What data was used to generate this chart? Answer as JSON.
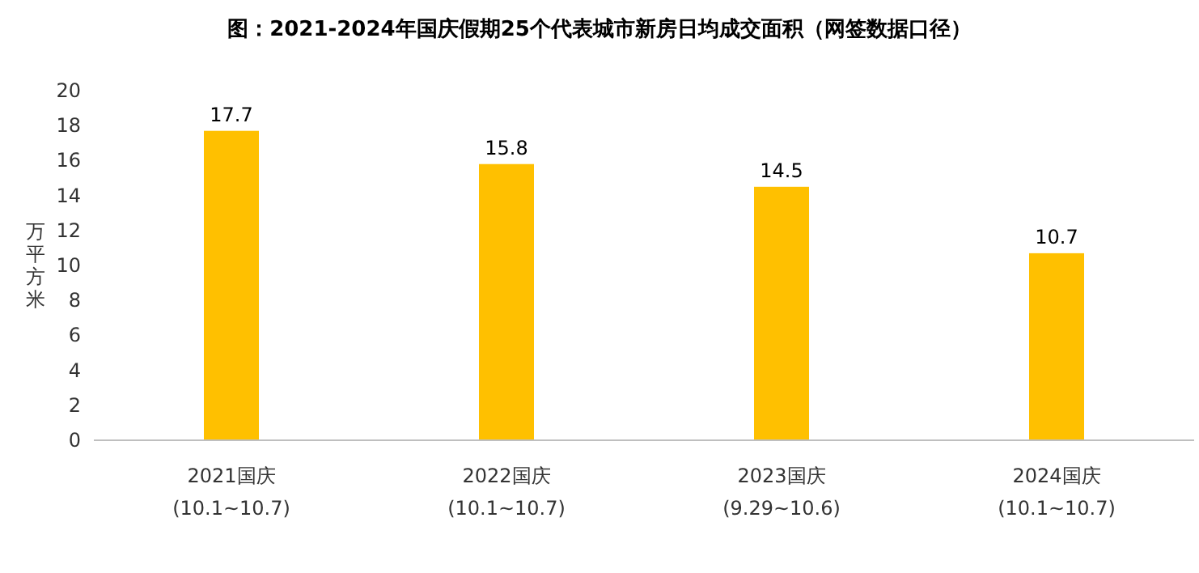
{
  "chart_data": {
    "type": "bar",
    "title": "图：2021-2024年国庆假期25个代表城市新房日均成交面积（网签数据口径）",
    "ylabel": "万平方米",
    "categories": [
      "2021国庆\n(10.1~10.7)",
      "2022国庆\n(10.1~10.7)",
      "2023国庆\n(9.29~10.6)",
      "2024国庆\n(10.1~10.7)"
    ],
    "values": [
      17.7,
      15.8,
      14.5,
      10.7
    ],
    "color": "#ffc000",
    "ylim": [
      0,
      20
    ],
    "yticks": [
      0,
      2,
      4,
      6,
      8,
      10,
      12,
      14,
      16,
      18,
      20
    ],
    "data_labels": true
  }
}
